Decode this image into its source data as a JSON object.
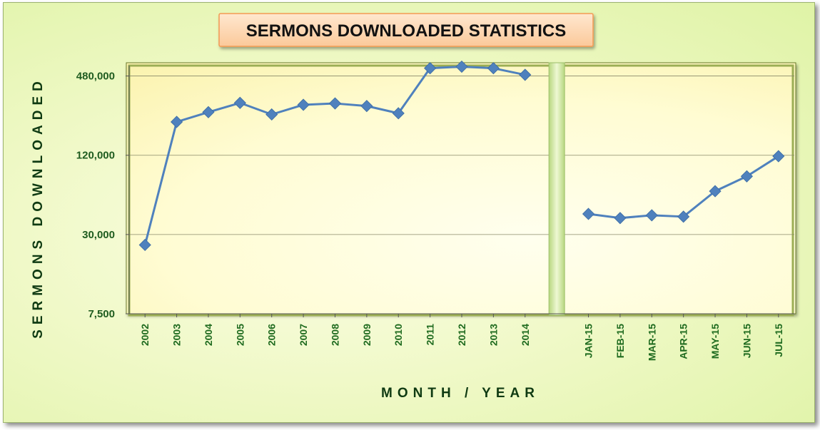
{
  "chart_data": {
    "type": "line",
    "title": "SERMONS DOWNLOADED STATISTICS",
    "xlabel": "MONTH / YEAR",
    "ylabel": "SERMONS DOWNLOADED",
    "scale": "log",
    "ylim": [
      7500,
      960000
    ],
    "yticks": [
      {
        "value": 7500,
        "label": "7,500"
      },
      {
        "value": 30000,
        "label": "30,000"
      },
      {
        "value": 120000,
        "label": "120,000"
      },
      {
        "value": 480000,
        "label": "480,000"
      }
    ],
    "grid": true,
    "legend": "none",
    "line_color": "#4f81bd",
    "series": [
      {
        "segment": "years",
        "x": [
          "2002",
          "2003",
          "2004",
          "2005",
          "2006",
          "2007",
          "2008",
          "2009",
          "2010",
          "2011",
          "2012",
          "2013",
          "2014"
        ],
        "values": [
          25000,
          215000,
          255000,
          300000,
          245000,
          290000,
          297000,
          284000,
          250000,
          550000,
          565000,
          550000,
          490000
        ]
      },
      {
        "segment": "months",
        "x": [
          "JAN-15",
          "FEB-15",
          "MAR-15",
          "APR-15",
          "MAY-15",
          "JUN-15",
          "JUL-15"
        ],
        "values": [
          43000,
          40000,
          42000,
          41000,
          64000,
          83000,
          118000
        ]
      }
    ]
  }
}
